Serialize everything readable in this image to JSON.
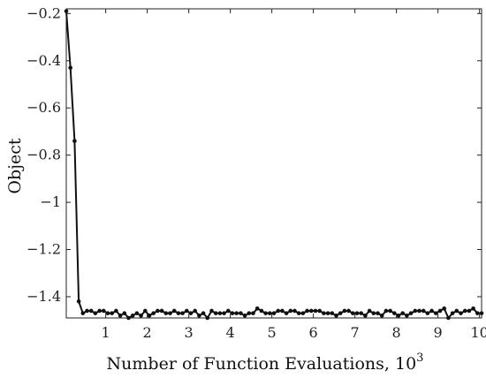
{
  "chart_data": {
    "type": "line",
    "xlabel": "Number of Function Evaluations, 10",
    "xlabel_superscript": "3",
    "ylabel": "Object",
    "xlim": [
      0.05,
      10.05
    ],
    "ylim": [
      -1.49,
      -0.18
    ],
    "xticks": [
      1,
      2,
      3,
      4,
      5,
      6,
      7,
      8,
      9,
      10
    ],
    "xtick_labels": [
      "1",
      "2",
      "3",
      "4",
      "5",
      "6",
      "7",
      "8",
      "9",
      "10"
    ],
    "yticks": [
      -0.2,
      -0.4,
      -0.6,
      -0.8,
      -1.0,
      -1.2,
      -1.4
    ],
    "ytick_labels": [
      "−0.2",
      "−0.4",
      "−0.6",
      "−0.8",
      "−1",
      "−1.2",
      "−1.4"
    ],
    "grid": false,
    "legend": "none",
    "series": [
      {
        "x": [
          0.05,
          0.15,
          0.25,
          0.35,
          0.45,
          0.55,
          0.65,
          0.75,
          0.85,
          0.95,
          1.05,
          1.15,
          1.25,
          1.35,
          1.45,
          1.55,
          1.65,
          1.75,
          1.85,
          1.95,
          2.05,
          2.15,
          2.25,
          2.35,
          2.45,
          2.55,
          2.65,
          2.75,
          2.85,
          2.95,
          3.05,
          3.15,
          3.25,
          3.35,
          3.45,
          3.55,
          3.65,
          3.75,
          3.85,
          3.95,
          4.05,
          4.15,
          4.25,
          4.35,
          4.45,
          4.55,
          4.65,
          4.75,
          4.85,
          4.95,
          5.05,
          5.15,
          5.25,
          5.35,
          5.45,
          5.55,
          5.65,
          5.75,
          5.85,
          5.95,
          6.05,
          6.15,
          6.25,
          6.35,
          6.45,
          6.55,
          6.65,
          6.75,
          6.85,
          6.95,
          7.05,
          7.15,
          7.25,
          7.35,
          7.45,
          7.55,
          7.65,
          7.75,
          7.85,
          7.95,
          8.05,
          8.15,
          8.25,
          8.35,
          8.45,
          8.55,
          8.65,
          8.75,
          8.85,
          8.95,
          9.05,
          9.15,
          9.25,
          9.35,
          9.45,
          9.55,
          9.65,
          9.75,
          9.85,
          9.95,
          10.05
        ],
        "values": [
          -0.19,
          -0.43,
          -0.74,
          -1.42,
          -1.47,
          -1.46,
          -1.46,
          -1.47,
          -1.46,
          -1.46,
          -1.47,
          -1.47,
          -1.46,
          -1.48,
          -1.47,
          -1.49,
          -1.48,
          -1.47,
          -1.48,
          -1.46,
          -1.48,
          -1.47,
          -1.46,
          -1.46,
          -1.47,
          -1.47,
          -1.46,
          -1.47,
          -1.47,
          -1.46,
          -1.47,
          -1.46,
          -1.48,
          -1.47,
          -1.49,
          -1.46,
          -1.47,
          -1.47,
          -1.47,
          -1.46,
          -1.47,
          -1.47,
          -1.47,
          -1.48,
          -1.47,
          -1.47,
          -1.45,
          -1.46,
          -1.47,
          -1.47,
          -1.47,
          -1.46,
          -1.46,
          -1.47,
          -1.46,
          -1.46,
          -1.47,
          -1.47,
          -1.46,
          -1.46,
          -1.46,
          -1.46,
          -1.47,
          -1.47,
          -1.47,
          -1.48,
          -1.47,
          -1.46,
          -1.46,
          -1.47,
          -1.47,
          -1.47,
          -1.48,
          -1.46,
          -1.47,
          -1.47,
          -1.48,
          -1.46,
          -1.46,
          -1.47,
          -1.48,
          -1.47,
          -1.48,
          -1.47,
          -1.46,
          -1.46,
          -1.46,
          -1.47,
          -1.46,
          -1.47,
          -1.46,
          -1.45,
          -1.49,
          -1.47,
          -1.46,
          -1.47,
          -1.46,
          -1.46,
          -1.45,
          -1.47,
          -1.47
        ]
      }
    ]
  }
}
